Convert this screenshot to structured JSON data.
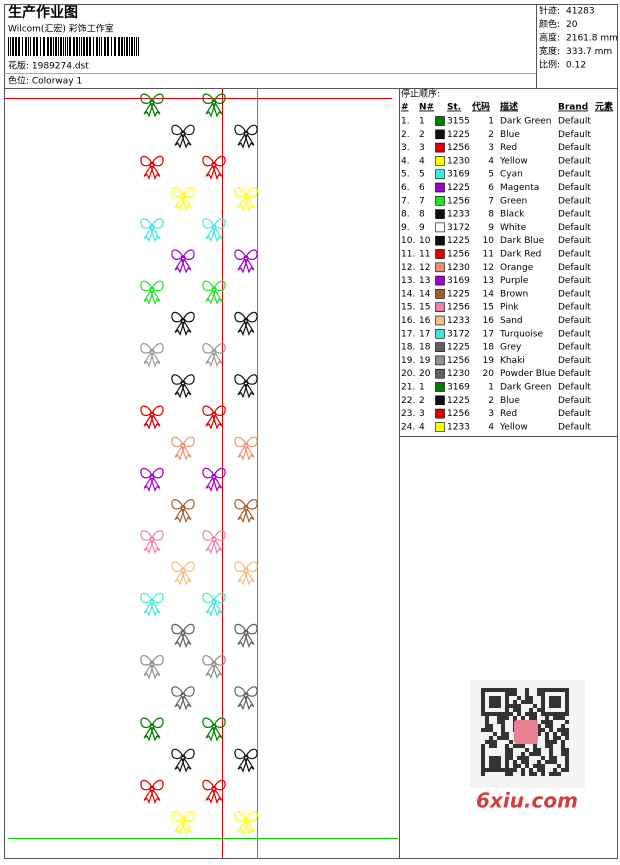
{
  "header": {
    "title": "生产作业图",
    "company": "Wilcom(汇宏) 彩饰工作室",
    "design": "花版:  1989274.dst",
    "colorway": "色位:  Colorway 1"
  },
  "stats": [
    {
      "label": "针迹:",
      "value": "41283"
    },
    {
      "label": "颜色:",
      "value": "20"
    },
    {
      "label": "高度:",
      "value": "2161.8 mm"
    },
    {
      "label": "宽度:",
      "value": "333.7 mm"
    },
    {
      "label": "比例:",
      "value": "0.12"
    }
  ],
  "stop_sequence": {
    "title": "停止顺序:",
    "columns": [
      "#",
      "N#",
      "St.",
      "代码",
      "描述",
      "Brand",
      "元素"
    ],
    "rows": [
      [
        "1.",
        "1",
        "3155",
        "1",
        "Dark Green",
        "Default",
        "#008000"
      ],
      [
        "2.",
        "2",
        "1225",
        "2",
        "Blue",
        "Default",
        "#111118"
      ],
      [
        "3.",
        "3",
        "1256",
        "3",
        "Red",
        "Default",
        "#e00000"
      ],
      [
        "4.",
        "4",
        "1230",
        "4",
        "Yellow",
        "Default",
        "#ffff00"
      ],
      [
        "5.",
        "5",
        "3169",
        "5",
        "Cyan",
        "Default",
        "#40e8e8"
      ],
      [
        "6.",
        "6",
        "1225",
        "6",
        "Magenta",
        "Default",
        "#a000c8"
      ],
      [
        "7.",
        "7",
        "1256",
        "7",
        "Green",
        "Default",
        "#20e020"
      ],
      [
        "8.",
        "8",
        "1233",
        "8",
        "Black",
        "Default",
        "#101010"
      ],
      [
        "9.",
        "9",
        "3172",
        "9",
        "White",
        "Default",
        "#ffffff"
      ],
      [
        "10.",
        "10",
        "1225",
        "10",
        "Dark Blue",
        "Default",
        "#101018"
      ],
      [
        "11.",
        "11",
        "1256",
        "11",
        "Dark Red",
        "Default",
        "#e00000"
      ],
      [
        "12.",
        "12",
        "1230",
        "12",
        "Orange",
        "Default",
        "#f09070"
      ],
      [
        "13.",
        "13",
        "3169",
        "13",
        "Purple",
        "Default",
        "#a000c8"
      ],
      [
        "14.",
        "14",
        "1225",
        "14",
        "Brown",
        "Default",
        "#a06030"
      ],
      [
        "15.",
        "15",
        "1256",
        "15",
        "Pink",
        "Default",
        "#f080b0"
      ],
      [
        "16.",
        "16",
        "1233",
        "16",
        "Sand",
        "Default",
        "#f0c080"
      ],
      [
        "17.",
        "17",
        "3172",
        "17",
        "Turquoise",
        "Default",
        "#40e8d8"
      ],
      [
        "18.",
        "18",
        "1225",
        "18",
        "Grey",
        "Default",
        "#606060"
      ],
      [
        "19.",
        "19",
        "1256",
        "19",
        "Khaki",
        "Default",
        "#909090"
      ],
      [
        "20.",
        "20",
        "1230",
        "20",
        "Powder Blue",
        "Default",
        "#606068"
      ],
      [
        "21.",
        "1",
        "3169",
        "1",
        "Dark Green",
        "Default",
        "#008000"
      ],
      [
        "22.",
        "2",
        "1225",
        "2",
        "Blue",
        "Default",
        "#111118"
      ],
      [
        "23.",
        "3",
        "1256",
        "3",
        "Red",
        "Default",
        "#e00000"
      ],
      [
        "24.",
        "4",
        "1233",
        "4",
        "Yellow",
        "Default",
        "#ffff00"
      ]
    ]
  },
  "watermark": "6xiu.com"
}
